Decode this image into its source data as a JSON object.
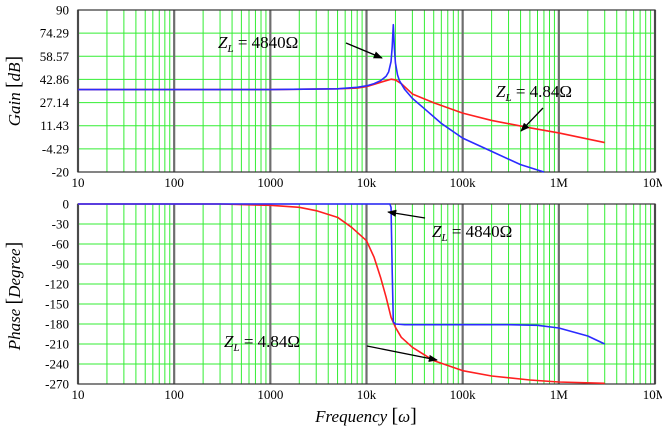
{
  "chart_data": [
    {
      "type": "line",
      "ylabel": "Gain",
      "ylabel_unit": "dB",
      "xscale": "log",
      "xlim": [
        10,
        10000000
      ],
      "ylim": [
        -20,
        90
      ],
      "x_tick_values": [
        10,
        100,
        1000,
        10000,
        100000,
        1000000,
        10000000
      ],
      "x_tick_labels": [
        "10",
        "100",
        "1000",
        "10k",
        "100k",
        "1M",
        "10M"
      ],
      "y_tick_values": [
        90,
        74.29,
        58.57,
        42.86,
        27.14,
        11.43,
        -4.29,
        -20
      ],
      "y_tick_labels": [
        "90",
        "74.29",
        "58.57",
        "42.86",
        "27.14",
        "11.43",
        "-4.29",
        "-20"
      ],
      "grid": true,
      "colors": {
        "grid": "#33ee33",
        "major_grid": "#6e6e6e",
        "zl_4840": "#2b2bff",
        "zl_4_84": "#ff2020"
      },
      "annotations": [
        {
          "text_var": "Z",
          "text_sub": "L",
          "text_rest": " = 4840Ω",
          "series": "zl_4840"
        },
        {
          "text_var": "Z",
          "text_sub": "L",
          "text_rest": " = 4.84Ω",
          "series": "zl_4_84"
        }
      ],
      "series": [
        {
          "key": "zl_4840",
          "x": [
            10,
            1000,
            5000,
            8000,
            10000,
            12000,
            14000,
            16000,
            17000,
            18000,
            18500,
            19000,
            19500,
            20000,
            21000,
            22000,
            25000,
            30000,
            40000,
            60000,
            100000,
            200000,
            400000,
            700000
          ],
          "y": [
            36,
            36,
            36.5,
            37.5,
            38.5,
            40,
            42,
            45,
            48,
            55,
            65,
            80,
            64,
            54,
            46,
            42,
            36,
            30,
            23,
            13,
            3,
            -6,
            -15,
            -20
          ]
        },
        {
          "key": "zl_4_84",
          "x": [
            10,
            1000,
            5000,
            8000,
            10000,
            12000,
            15000,
            18000,
            20000,
            23000,
            30000,
            50000,
            100000,
            200000,
            500000,
            1000000,
            3000000
          ],
          "y": [
            36,
            36,
            36.5,
            37,
            38,
            39.5,
            41.5,
            43,
            42.5,
            40,
            33,
            27,
            20,
            15,
            10,
            6.5,
            0
          ]
        }
      ]
    },
    {
      "type": "line",
      "xlabel": "Frequency",
      "xlabel_unit": "ω",
      "ylabel": "Phase",
      "ylabel_unit": "Degree",
      "xscale": "log",
      "xlim": [
        10,
        10000000
      ],
      "ylim": [
        -270,
        0
      ],
      "x_tick_values": [
        10,
        100,
        1000,
        10000,
        100000,
        1000000,
        10000000
      ],
      "x_tick_labels": [
        "10",
        "100",
        "1000",
        "10k",
        "100k",
        "1M",
        "10M"
      ],
      "y_tick_values": [
        0,
        -30,
        -60,
        -90,
        -120,
        -150,
        -180,
        -210,
        -240,
        -270
      ],
      "y_tick_labels": [
        "0",
        "-30",
        "-60",
        "-90",
        "-120",
        "-150",
        "-180",
        "-210",
        "-240",
        "-270"
      ],
      "grid": true,
      "colors": {
        "grid": "#33ee33",
        "major_grid": "#6e6e6e",
        "zl_4840": "#2b2bff",
        "zl_4_84": "#ff2020"
      },
      "annotations": [
        {
          "text_var": "Z",
          "text_sub": "L",
          "text_rest": " = 4840Ω",
          "series": "zl_4840"
        },
        {
          "text_var": "Z",
          "text_sub": "L",
          "text_rest": " = 4.84Ω",
          "series": "zl_4_84"
        }
      ],
      "series": [
        {
          "key": "zl_4840",
          "x": [
            10,
            1000,
            10000,
            17500,
            18000,
            18500,
            19000,
            20000,
            25000,
            50000,
            100000,
            300000,
            600000,
            1000000,
            2000000,
            3000000
          ],
          "y": [
            0,
            0,
            0,
            0,
            -5,
            -100,
            -177,
            -180,
            -181,
            -181,
            -181,
            -181,
            -182,
            -186,
            -198,
            -210
          ]
        },
        {
          "key": "zl_4_84",
          "x": [
            10,
            300,
            1000,
            2000,
            3000,
            5000,
            7000,
            10000,
            12000,
            14000,
            16000,
            18000,
            20000,
            23000,
            30000,
            50000,
            100000,
            200000,
            500000,
            1000000,
            3000000
          ],
          "y": [
            0,
            0,
            -2,
            -5,
            -10,
            -20,
            -35,
            -55,
            -80,
            -110,
            -140,
            -170,
            -185,
            -200,
            -215,
            -235,
            -250,
            -258,
            -264,
            -267,
            -269
          ]
        }
      ]
    }
  ]
}
